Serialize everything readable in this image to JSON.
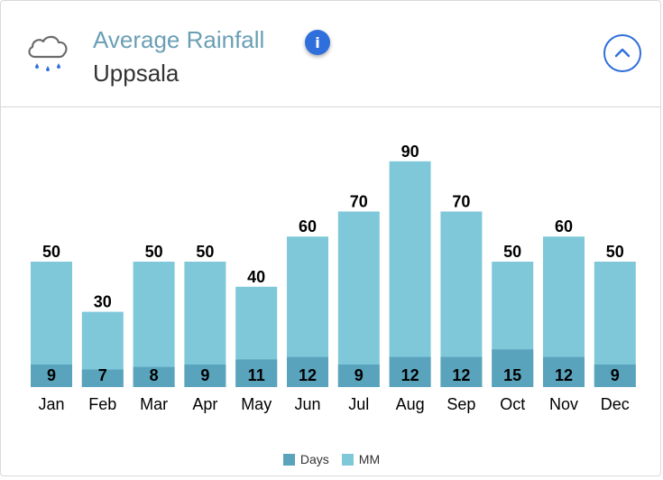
{
  "header": {
    "title": "Average Rainfall",
    "subtitle": "Uppsala",
    "info_glyph": "i",
    "icons": {
      "weather": "rain-cloud-icon",
      "info": "info-icon",
      "collapse": "chevron-up-icon"
    }
  },
  "colors": {
    "mm": "#7ec8da",
    "days": "#5aa3bc",
    "title": "#6a9fb5",
    "accent": "#2f6fdb"
  },
  "chart_data": {
    "type": "bar",
    "title": "Average Rainfall",
    "subtitle": "Uppsala",
    "categories": [
      "Jan",
      "Feb",
      "Mar",
      "Apr",
      "May",
      "Jun",
      "Jul",
      "Aug",
      "Sep",
      "Oct",
      "Nov",
      "Dec"
    ],
    "series": [
      {
        "name": "MM",
        "values": [
          50,
          30,
          50,
          50,
          40,
          60,
          70,
          90,
          70,
          50,
          60,
          50
        ]
      },
      {
        "name": "Days",
        "values": [
          9,
          7,
          8,
          9,
          11,
          12,
          9,
          12,
          12,
          15,
          12,
          9
        ]
      }
    ],
    "legend": [
      "Days",
      "MM"
    ],
    "legend_position": "bottom-center",
    "ylim": [
      0,
      90
    ],
    "grid": false
  }
}
